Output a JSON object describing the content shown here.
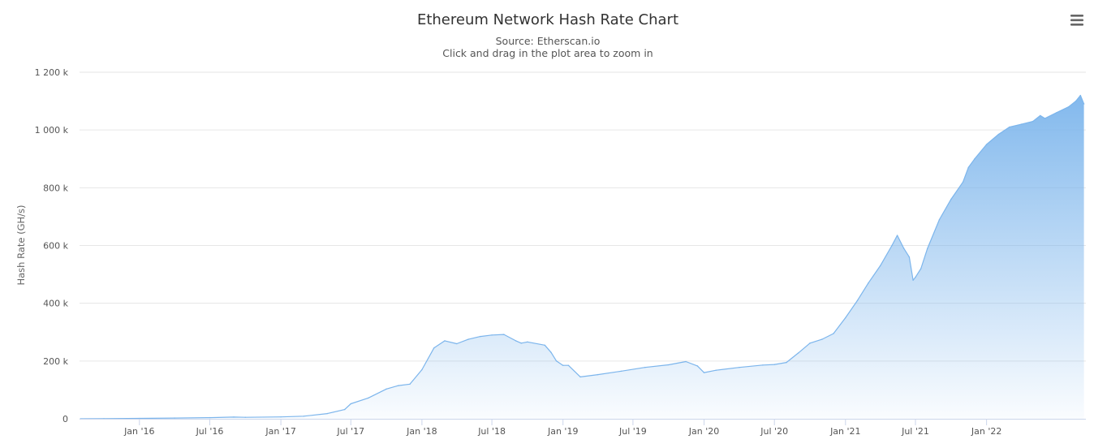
{
  "chart_data": {
    "type": "area",
    "title": "Ethereum Network Hash Rate Chart",
    "subtitle_lines": [
      "Source: Etherscan.io",
      "Click and drag in the plot area to zoom in"
    ],
    "xlabel": "",
    "ylabel": "Hash Rate (GH/s)",
    "ylim": [
      0,
      1200000
    ],
    "y_ticks": [
      {
        "value": 0,
        "label": "0"
      },
      {
        "value": 200000,
        "label": "200 k"
      },
      {
        "value": 400000,
        "label": "400 k"
      },
      {
        "value": 600000,
        "label": "600 k"
      },
      {
        "value": 800000,
        "label": "800 k"
      },
      {
        "value": 1000000,
        "label": "1 000 k"
      },
      {
        "value": 1200000,
        "label": "1 200 k"
      }
    ],
    "xlim": [
      "2015-07-30",
      "2022-09-15"
    ],
    "x_ticks": [
      {
        "date": "2016-01-01",
        "label": "Jan '16"
      },
      {
        "date": "2016-07-01",
        "label": "Jul '16"
      },
      {
        "date": "2017-01-01",
        "label": "Jan '17"
      },
      {
        "date": "2017-07-01",
        "label": "Jul '17"
      },
      {
        "date": "2018-01-01",
        "label": "Jan '18"
      },
      {
        "date": "2018-07-01",
        "label": "Jul '18"
      },
      {
        "date": "2019-01-01",
        "label": "Jan '19"
      },
      {
        "date": "2019-07-01",
        "label": "Jul '19"
      },
      {
        "date": "2020-01-01",
        "label": "Jan '20"
      },
      {
        "date": "2020-07-01",
        "label": "Jul '20"
      },
      {
        "date": "2021-01-01",
        "label": "Jan '21"
      },
      {
        "date": "2021-07-01",
        "label": "Jul '21"
      },
      {
        "date": "2022-01-01",
        "label": "Jan '22"
      }
    ],
    "grid": true,
    "legend": "none",
    "series": [
      {
        "color": "#7cb5ec",
        "x": [
          "2015-08-01",
          "2015-10-01",
          "2016-01-01",
          "2016-04-01",
          "2016-07-01",
          "2016-09-01",
          "2016-10-01",
          "2017-01-01",
          "2017-03-01",
          "2017-05-01",
          "2017-06-15",
          "2017-07-01",
          "2017-08-15",
          "2017-10-01",
          "2017-11-01",
          "2017-12-01",
          "2018-01-01",
          "2018-02-01",
          "2018-03-01",
          "2018-04-01",
          "2018-05-01",
          "2018-06-01",
          "2018-07-01",
          "2018-08-01",
          "2018-09-01",
          "2018-09-15",
          "2018-10-01",
          "2018-11-15",
          "2018-12-01",
          "2018-12-15",
          "2019-01-01",
          "2019-01-15",
          "2019-02-15",
          "2019-04-01",
          "2019-06-01",
          "2019-08-01",
          "2019-10-01",
          "2019-11-15",
          "2019-12-15",
          "2020-01-01",
          "2020-02-01",
          "2020-04-01",
          "2020-06-01",
          "2020-07-01",
          "2020-08-01",
          "2020-09-01",
          "2020-10-01",
          "2020-11-01",
          "2020-12-01",
          "2021-01-01",
          "2021-02-01",
          "2021-03-01",
          "2021-04-01",
          "2021-05-01",
          "2021-05-15",
          "2021-06-01",
          "2021-06-15",
          "2021-06-25",
          "2021-07-01",
          "2021-07-15",
          "2021-08-01",
          "2021-09-01",
          "2021-10-01",
          "2021-11-01",
          "2021-11-15",
          "2021-12-01",
          "2022-01-01",
          "2022-02-01",
          "2022-03-01",
          "2022-04-01",
          "2022-05-01",
          "2022-05-20",
          "2022-06-01",
          "2022-07-01",
          "2022-08-01",
          "2022-08-20",
          "2022-09-01",
          "2022-09-10"
        ],
        "values": [
          0,
          500,
          1500,
          2500,
          4000,
          6000,
          5000,
          6500,
          9000,
          18000,
          32000,
          52000,
          72000,
          103000,
          115000,
          120000,
          170000,
          245000,
          270000,
          260000,
          275000,
          285000,
          290000,
          292000,
          270000,
          262000,
          266000,
          255000,
          230000,
          200000,
          185000,
          185000,
          145000,
          153000,
          165000,
          178000,
          187000,
          198000,
          183000,
          160000,
          168000,
          178000,
          186000,
          188000,
          195000,
          228000,
          262000,
          275000,
          295000,
          350000,
          410000,
          470000,
          530000,
          600000,
          635000,
          590000,
          560000,
          480000,
          490000,
          520000,
          590000,
          690000,
          760000,
          820000,
          870000,
          900000,
          950000,
          985000,
          1010000,
          1020000,
          1030000,
          1050000,
          1040000,
          1060000,
          1080000,
          1100000,
          1120000,
          1090000
        ]
      }
    ]
  },
  "ui": {
    "menu_icon": "hamburger-menu-icon"
  }
}
